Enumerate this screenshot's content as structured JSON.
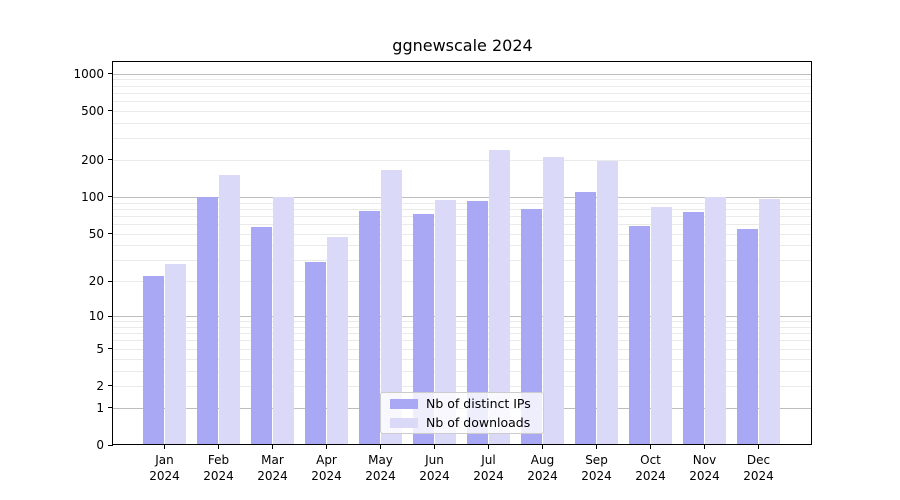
{
  "title": "ggnewscale 2024",
  "chart_data": {
    "type": "bar",
    "title": "ggnewscale 2024",
    "categories": [
      "Jan",
      "Feb",
      "Mar",
      "Apr",
      "May",
      "Jun",
      "Jul",
      "Aug",
      "Sep",
      "Oct",
      "Nov",
      "Dec"
    ],
    "x_tick_year": "2024",
    "series": [
      {
        "name": "Nb of distinct IPs",
        "color": "#a8a8f5",
        "values": [
          22,
          100,
          57,
          29,
          77,
          72,
          92,
          79,
          110,
          58,
          76,
          55
        ]
      },
      {
        "name": "Nb of downloads",
        "color": "#dadaf8",
        "values": [
          28,
          150,
          100,
          47,
          165,
          94,
          240,
          210,
          195,
          83,
          100,
          97
        ]
      }
    ],
    "y_axis": {
      "scale": "log1p",
      "ticks": [
        0,
        1,
        2,
        5,
        10,
        20,
        50,
        100,
        200,
        500,
        1000
      ],
      "major_grid": [
        1,
        10,
        100,
        1000
      ],
      "minor_grid": [
        2,
        3,
        4,
        5,
        6,
        7,
        8,
        9,
        20,
        30,
        40,
        50,
        60,
        70,
        80,
        90,
        200,
        300,
        400,
        500,
        600,
        700,
        800,
        900
      ],
      "top_value": 1230
    },
    "legend": {
      "position": "lower-center",
      "entries": [
        "Nb of distinct IPs",
        "Nb of downloads"
      ]
    },
    "grid": true
  },
  "colors": {
    "major_grid": "#bdbdbd",
    "minor_grid": "#eaeaea",
    "axis": "#000000",
    "background": "#ffffff"
  }
}
